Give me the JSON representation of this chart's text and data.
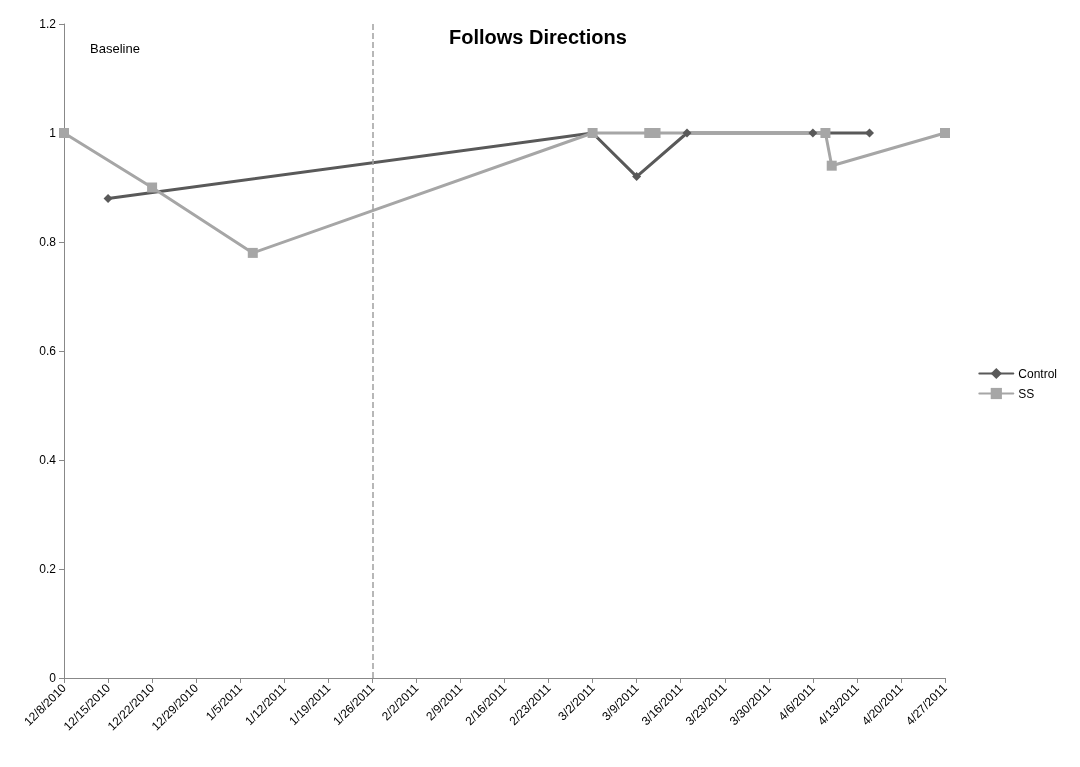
{
  "chart_data": {
    "type": "line",
    "title": "Follows Directions",
    "annotations": [
      "Baseline"
    ],
    "series": [
      {
        "name": "Control",
        "color": "#595959",
        "marker": "diamond",
        "x": [
          "2010-12-15",
          "2011-03-02",
          "2011-03-09",
          "2011-03-17",
          "2011-04-06",
          "2011-04-15"
        ],
        "values": [
          0.88,
          1,
          0.92,
          1,
          1,
          1
        ]
      },
      {
        "name": "SS",
        "color": "#a6a6a6",
        "marker": "square",
        "x": [
          "2010-12-08",
          "2010-12-22",
          "2011-01-07",
          "2011-03-02",
          "2011-03-11",
          "2011-03-12",
          "2011-04-08",
          "2011-04-09",
          "2011-04-27"
        ],
        "values": [
          1,
          0.9,
          0.78,
          1,
          1,
          1,
          1,
          0.94,
          1
        ]
      }
    ],
    "xlim": [
      "2010-12-08",
      "2011-04-27"
    ],
    "xticks": [
      {
        "value": "2010-12-08",
        "label": "12/8/2010"
      },
      {
        "value": "2010-12-15",
        "label": "12/15/2010"
      },
      {
        "value": "2010-12-22",
        "label": "12/22/2010"
      },
      {
        "value": "2010-12-29",
        "label": "12/29/2010"
      },
      {
        "value": "2011-01-05",
        "label": "1/5/2011"
      },
      {
        "value": "2011-01-12",
        "label": "1/12/2011"
      },
      {
        "value": "2011-01-19",
        "label": "1/19/2011"
      },
      {
        "value": "2011-01-26",
        "label": "1/26/2011"
      },
      {
        "value": "2011-02-02",
        "label": "2/2/2011"
      },
      {
        "value": "2011-02-09",
        "label": "2/9/2011"
      },
      {
        "value": "2011-02-16",
        "label": "2/16/2011"
      },
      {
        "value": "2011-02-23",
        "label": "2/23/2011"
      },
      {
        "value": "2011-03-02",
        "label": "3/2/2011"
      },
      {
        "value": "2011-03-09",
        "label": "3/9/2011"
      },
      {
        "value": "2011-03-16",
        "label": "3/16/2011"
      },
      {
        "value": "2011-03-23",
        "label": "3/23/2011"
      },
      {
        "value": "2011-03-30",
        "label": "3/30/2011"
      },
      {
        "value": "2011-04-06",
        "label": "4/6/2011"
      },
      {
        "value": "2011-04-13",
        "label": "4/13/2011"
      },
      {
        "value": "2011-04-20",
        "label": "4/20/2011"
      },
      {
        "value": "2011-04-27",
        "label": "4/27/2011"
      }
    ],
    "ylim": [
      0,
      1.2
    ],
    "yticks": [
      0,
      0.2,
      0.4,
      0.6,
      0.8,
      1,
      1.2
    ],
    "ref_lines": [
      {
        "axis": "x",
        "value": "2011-01-26",
        "color": "#a0a0a0",
        "line_style": "dashed"
      }
    ],
    "grid": false,
    "legend": "right",
    "line_style": "solid"
  }
}
